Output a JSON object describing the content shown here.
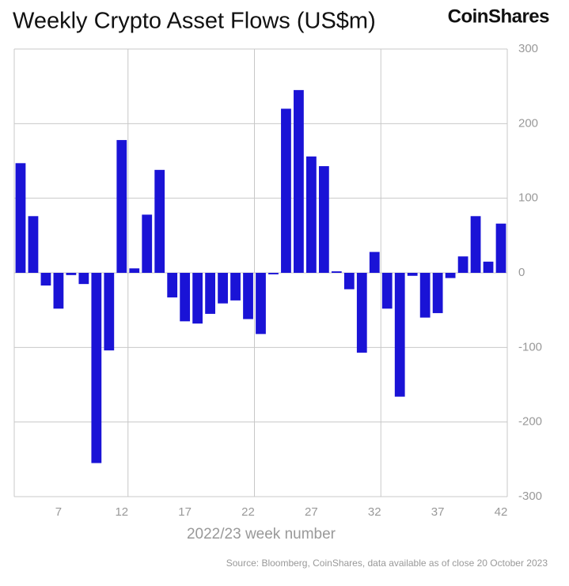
{
  "chart_data": {
    "type": "bar",
    "title": "Weekly Crypto Asset Flows (US$m)",
    "brand": "CoinShares",
    "x_label": "2022/23 week number",
    "source": "Source: Bloomberg, CoinShares, data available as of close 20 October 2023",
    "color": "#1a13d6",
    "x": [
      4,
      5,
      6,
      7,
      8,
      9,
      10,
      11,
      12,
      13,
      14,
      15,
      16,
      17,
      18,
      19,
      20,
      21,
      22,
      23,
      24,
      25,
      26,
      27,
      28,
      29,
      30,
      31,
      32,
      33,
      34,
      35,
      36,
      37,
      38,
      39,
      40,
      41,
      42
    ],
    "values": [
      147,
      76,
      -17,
      -48,
      -3,
      -15,
      -255,
      -104,
      178,
      6,
      78,
      138,
      -33,
      -65,
      -68,
      -55,
      -41,
      -37,
      -62,
      -82,
      -2,
      220,
      245,
      156,
      143,
      2,
      -22,
      -107,
      28,
      -48,
      -166,
      -4,
      -60,
      -54,
      -7,
      22,
      76,
      15,
      66
    ],
    "xlim": [
      3.5,
      42.5
    ],
    "xticks": [
      7,
      12,
      17,
      22,
      27,
      32,
      37,
      42
    ],
    "xgrid": [
      12.5,
      22.5,
      32.5
    ],
    "ylim": [
      -300,
      300
    ],
    "yticks": [
      -300,
      -200,
      -100,
      0,
      100,
      200,
      300
    ],
    "grid": true
  }
}
